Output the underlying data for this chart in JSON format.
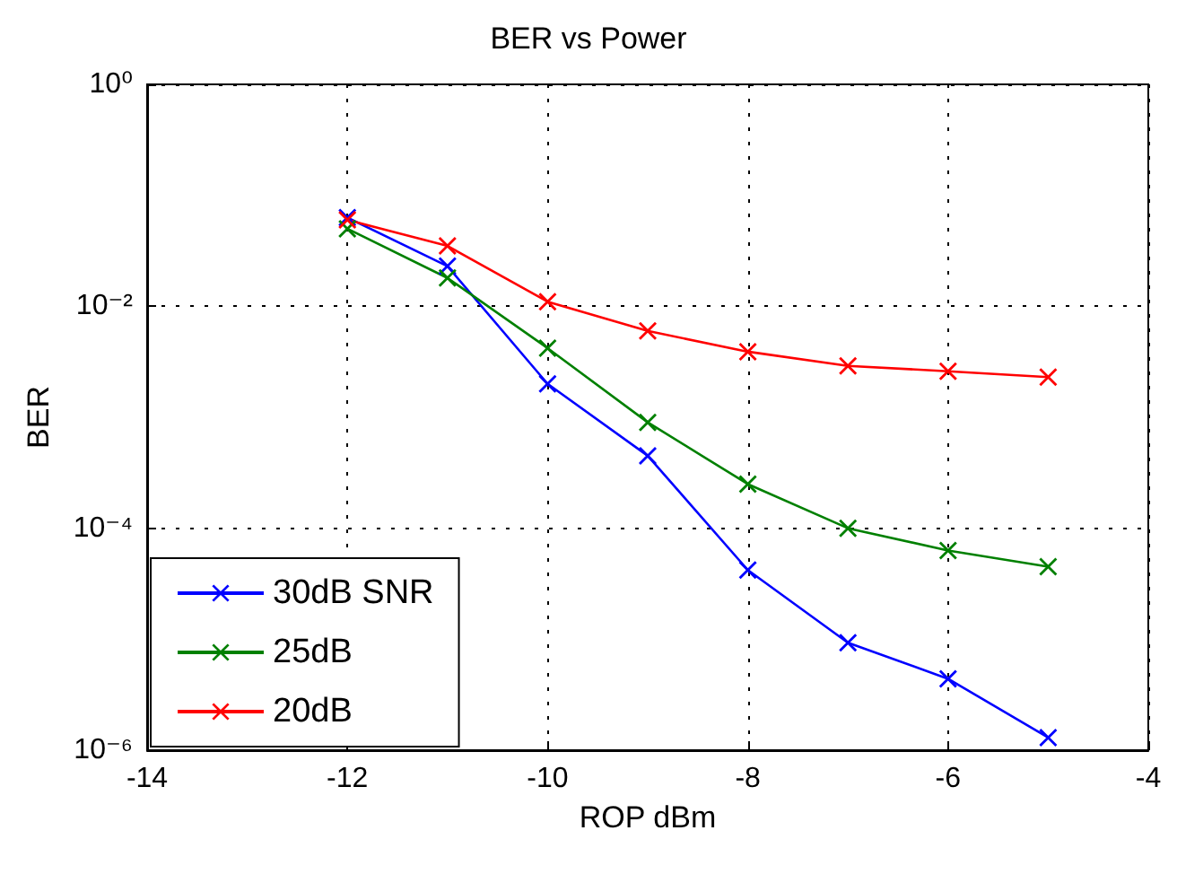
{
  "chart_data": {
    "type": "line",
    "title": "BER vs Power",
    "xlabel": "ROP dBm",
    "ylabel": "BER",
    "log": "y",
    "grid": true,
    "legend": "bottom left",
    "marker": "cross",
    "line_style": "solid",
    "x": [
      -12,
      -11,
      -10,
      -9,
      -8,
      -7,
      -6,
      -5
    ],
    "xlim": [
      -14,
      -4
    ],
    "xticks": [
      -14,
      -12,
      -10,
      -8,
      -6,
      -4
    ],
    "ylim": [
      1e-06,
      1
    ],
    "yticks": [
      {
        "value": 1e-06,
        "label": "10⁻⁶"
      },
      {
        "value": 0.0001,
        "label": "10⁻⁴"
      },
      {
        "value": 0.01,
        "label": "10⁻²"
      },
      {
        "value": 1,
        "label": "10⁰"
      }
    ],
    "series": [
      {
        "name": "30dB SNR",
        "color": "#0000ff",
        "values": [
          0.063,
          0.023,
          0.002,
          0.00045,
          4.2e-05,
          9.3e-06,
          4.4e-06,
          1.3e-06
        ]
      },
      {
        "name": "25dB",
        "color": "#008000",
        "values": [
          0.05,
          0.018,
          0.0042,
          0.0009,
          0.00025,
          0.0001,
          6.3e-05,
          4.5e-05
        ]
      },
      {
        "name": "20dB",
        "color": "#ff0000",
        "values": [
          0.06,
          0.035,
          0.011,
          0.006,
          0.0039,
          0.0029,
          0.0026,
          0.0023
        ]
      }
    ]
  }
}
